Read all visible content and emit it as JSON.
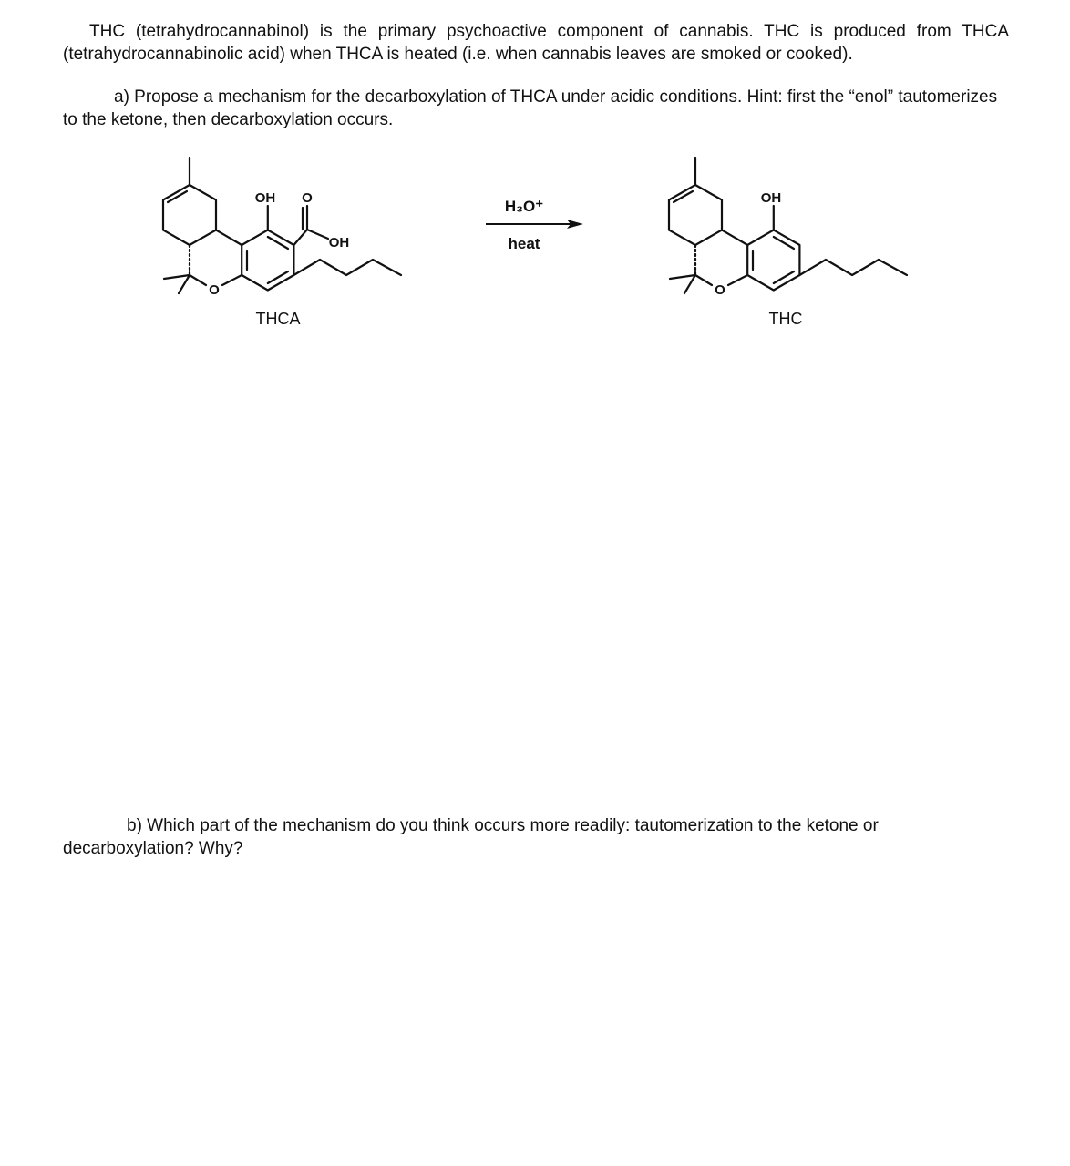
{
  "intro": "THC (tetrahydrocannabinol) is the primary psychoactive component of cannabis. THC is produced from THCA (tetrahydrocannabinolic acid) when THCA is heated (i.e. when cannabis leaves are smoked or cooked).",
  "question_a": "a) Propose a mechanism for the decarboxylation of THCA under acidic conditions. Hint: first the “enol” tautomerizes to the ketone, then decarboxylation occurs.",
  "reaction": {
    "reactant": {
      "name": "THCA",
      "labels": [
        "OH",
        "O",
        "OH",
        "O"
      ]
    },
    "reagents": [
      "H₃O⁺",
      "heat"
    ],
    "product": {
      "name": "THC",
      "labels": [
        "OH",
        "O"
      ]
    }
  },
  "question_b": "b) Which part of the mechanism do you think occurs more readily: tautomerization to the ketone or decarboxylation? Why?"
}
